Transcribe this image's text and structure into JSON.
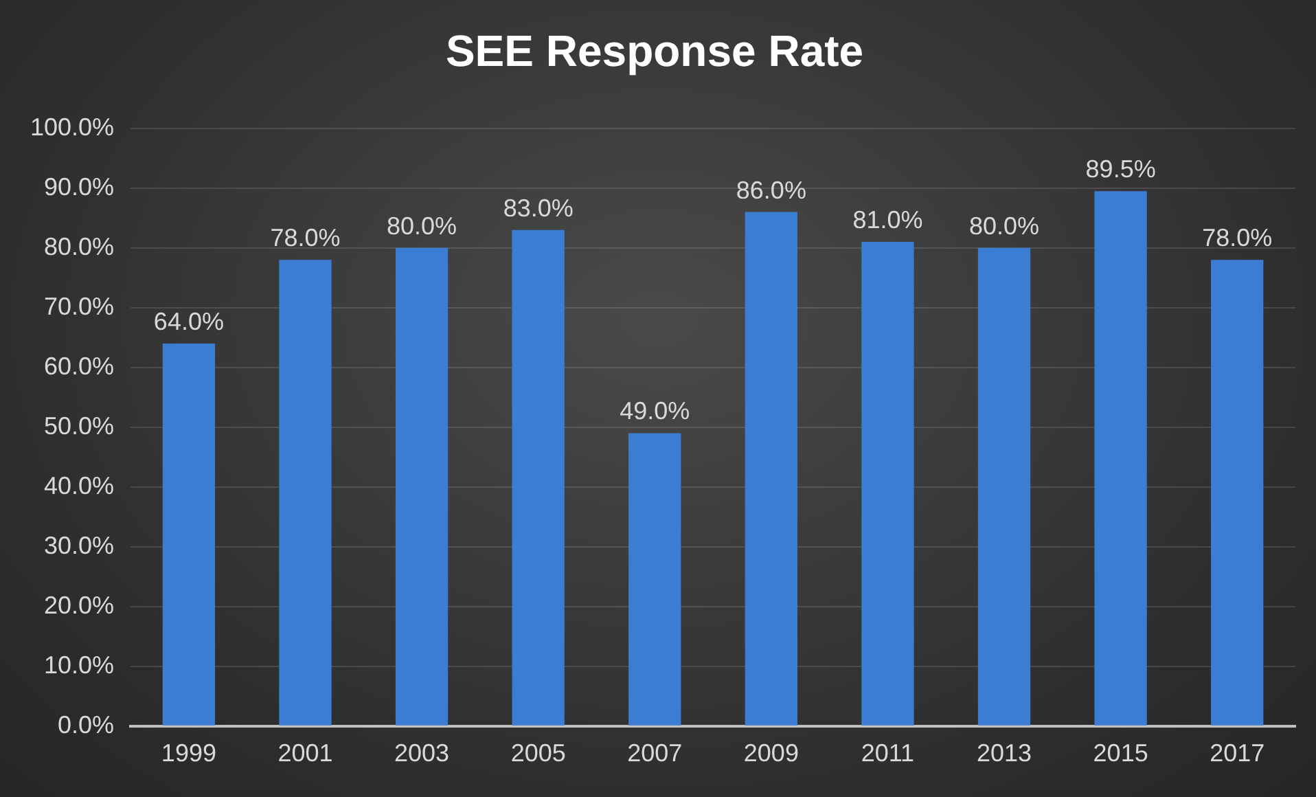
{
  "chart_data": {
    "type": "bar",
    "title": "SEE Response Rate",
    "categories": [
      "1999",
      "2001",
      "2003",
      "2005",
      "2007",
      "2009",
      "2011",
      "2013",
      "2015",
      "2017"
    ],
    "values": [
      64,
      78,
      80,
      83,
      49,
      86,
      81,
      80,
      89.5,
      78
    ],
    "value_labels": [
      "64.0%",
      "78.0%",
      "80.0%",
      "83.0%",
      "49.0%",
      "86.0%",
      "81.0%",
      "80.0%",
      "89.5%",
      "78.0%"
    ],
    "color": "#3c7dd4",
    "ylim": [
      0,
      100
    ],
    "yticks": [
      {
        "value": 0,
        "label": "0.0%"
      },
      {
        "value": 10,
        "label": "10.0%"
      },
      {
        "value": 20,
        "label": "20.0%"
      },
      {
        "value": 30,
        "label": "30.0%"
      },
      {
        "value": 40,
        "label": "40.0%"
      },
      {
        "value": 50,
        "label": "50.0%"
      },
      {
        "value": 60,
        "label": "60.0%"
      },
      {
        "value": 70,
        "label": "70.0%"
      },
      {
        "value": 80,
        "label": "80.0%"
      },
      {
        "value": 90,
        "label": "90.0%"
      },
      {
        "value": 100,
        "label": "100.0%"
      }
    ],
    "grid": "y"
  }
}
